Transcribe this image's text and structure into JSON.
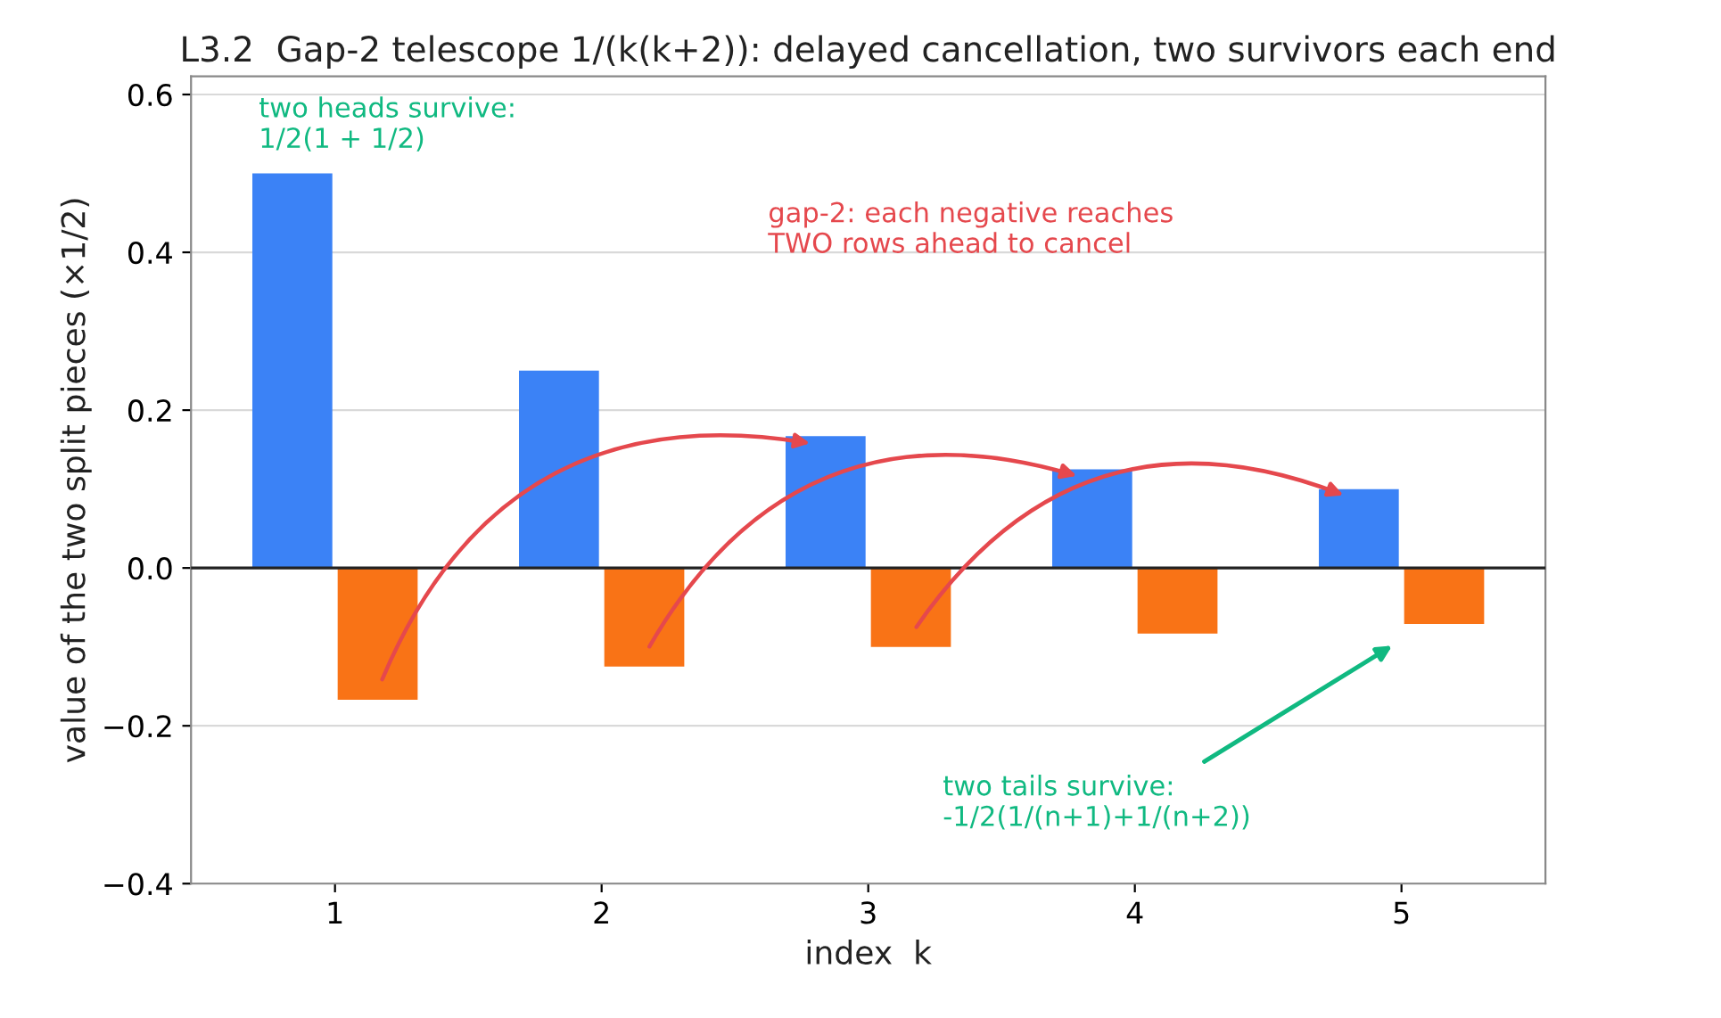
{
  "chart_data": {
    "type": "bar",
    "title": "L3.2  Gap-2 telescope 1/(k(k+2)): delayed cancellation, two survivors each end",
    "xlabel": "index  k",
    "ylabel": "value of the two split pieces (×1/2)",
    "categories": [
      "1",
      "2",
      "3",
      "4",
      "5"
    ],
    "series": [
      {
        "color": "#3b82f6",
        "values": [
          0.5,
          0.25,
          0.167,
          0.125,
          0.1
        ]
      },
      {
        "color": "#f97316",
        "values": [
          -0.167,
          -0.125,
          -0.1,
          -0.083,
          -0.071
        ]
      }
    ],
    "ylim": [
      -0.4,
      0.623
    ],
    "yticks": [
      {
        "value": -0.4,
        "label": "−0.4"
      },
      {
        "value": -0.2,
        "label": "−0.2"
      },
      {
        "value": 0,
        "label": "0.0"
      },
      0.2,
      0.4,
      0.6
    ],
    "grid": "y",
    "legend": false,
    "ref_lines": [
      {
        "axis": "y",
        "value": 0,
        "color": "#222222"
      }
    ],
    "annotations": [
      "two heads survive:\n1/2(1 + 1/2)",
      "gap-2: each negative reaches\nTWO rows ahead to cancel",
      "two tails survive:\n-1/2(1/(n+1)+1/(n+2))"
    ]
  }
}
